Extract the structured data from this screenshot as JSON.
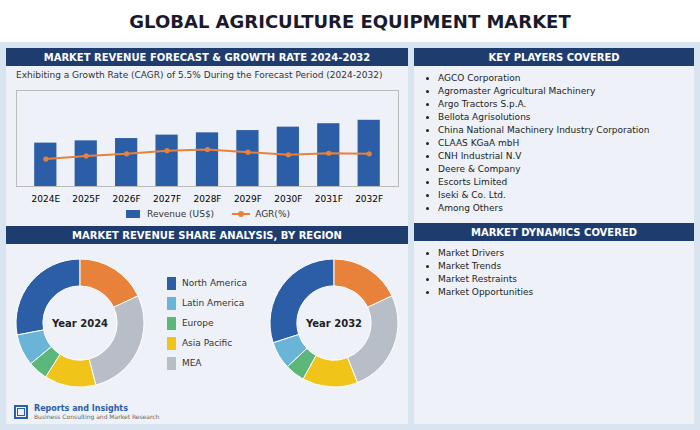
{
  "title": "GLOBAL AGRICULTURE EQUIPMENT MARKET",
  "chart_data": [
    {
      "type": "bar",
      "title": "MARKET REVENUE FORECAST & GROWTH RATE 2024-2032",
      "subtitle": "Exhibiting a Growth Rate (CAGR) of 5.5% During the Forecast Period (2024-2032)",
      "categories": [
        "2024E",
        "2025F",
        "2026F",
        "2027F",
        "2028F",
        "2029F",
        "2030F",
        "2031F",
        "2032F"
      ],
      "series": [
        {
          "name": "Revenue (US$)",
          "type": "bar",
          "color": "#2b5ea7",
          "values": [
            38,
            40,
            42,
            45,
            47,
            49,
            52,
            55,
            58
          ]
        },
        {
          "name": "AGR(%)",
          "type": "line",
          "axis": "y2",
          "color": "#e8823a",
          "marker": "circle",
          "values": [
            5.2,
            5.8,
            6.2,
            6.8,
            7.0,
            6.5,
            6.0,
            6.3,
            6.2
          ]
        }
      ],
      "ylim": [
        0,
        84.1
      ],
      "y2lim": [
        0,
        18.2
      ],
      "tick_labels": "x",
      "grid": false,
      "legend": "bottom"
    },
    {
      "type": "pie",
      "title": "Year 2024",
      "categories": [
        "North America",
        "Latin America",
        "Europe",
        "Asia Pacific",
        "MEA",
        null
      ],
      "values": [
        28,
        8,
        5,
        13,
        28,
        18
      ],
      "colors": [
        "#2b5ea7",
        "#6ab4d8",
        "#5cb87a",
        "#f0c419",
        "#b8bec8",
        "#e8823a"
      ],
      "legend": "right"
    },
    {
      "type": "pie",
      "title": "Year 2032",
      "categories": [
        "North America",
        "Latin America",
        "Europe",
        "Asia Pacific",
        "MEA",
        null
      ],
      "values": [
        30,
        7,
        5,
        14,
        26,
        18
      ],
      "colors": [
        "#2b5ea7",
        "#6ab4d8",
        "#5cb87a",
        "#f0c419",
        "#b8bec8",
        "#e8823a"
      ]
    }
  ],
  "annotations": [
    {
      "text": "MARKET REVENUE SHARE ANALYSIS, BY REGION"
    },
    {
      "text": "KEY PLAYERS COVERED",
      "items": [
        "AGCO Corporation",
        "Agromaster Agricultural Machinery",
        "Argo Tractors S.p.A.",
        "Bellota Agrisolutions",
        "China National Machinery Industry Corporation",
        "CLAAS KGaA mbH",
        "CNH Industrial N.V",
        "Deere & Company",
        "Escorts Limited",
        "Iseki & Co. Ltd.",
        "Among Others"
      ]
    },
    {
      "text": "MARKET DYNAMICS COVERED",
      "items": [
        "Market Drivers",
        "Market Trends",
        "Market Restraints",
        "Market Opportunities"
      ]
    },
    {
      "text": "Reports and Insights"
    },
    {
      "text": "Business Consulting and Market Research"
    }
  ]
}
